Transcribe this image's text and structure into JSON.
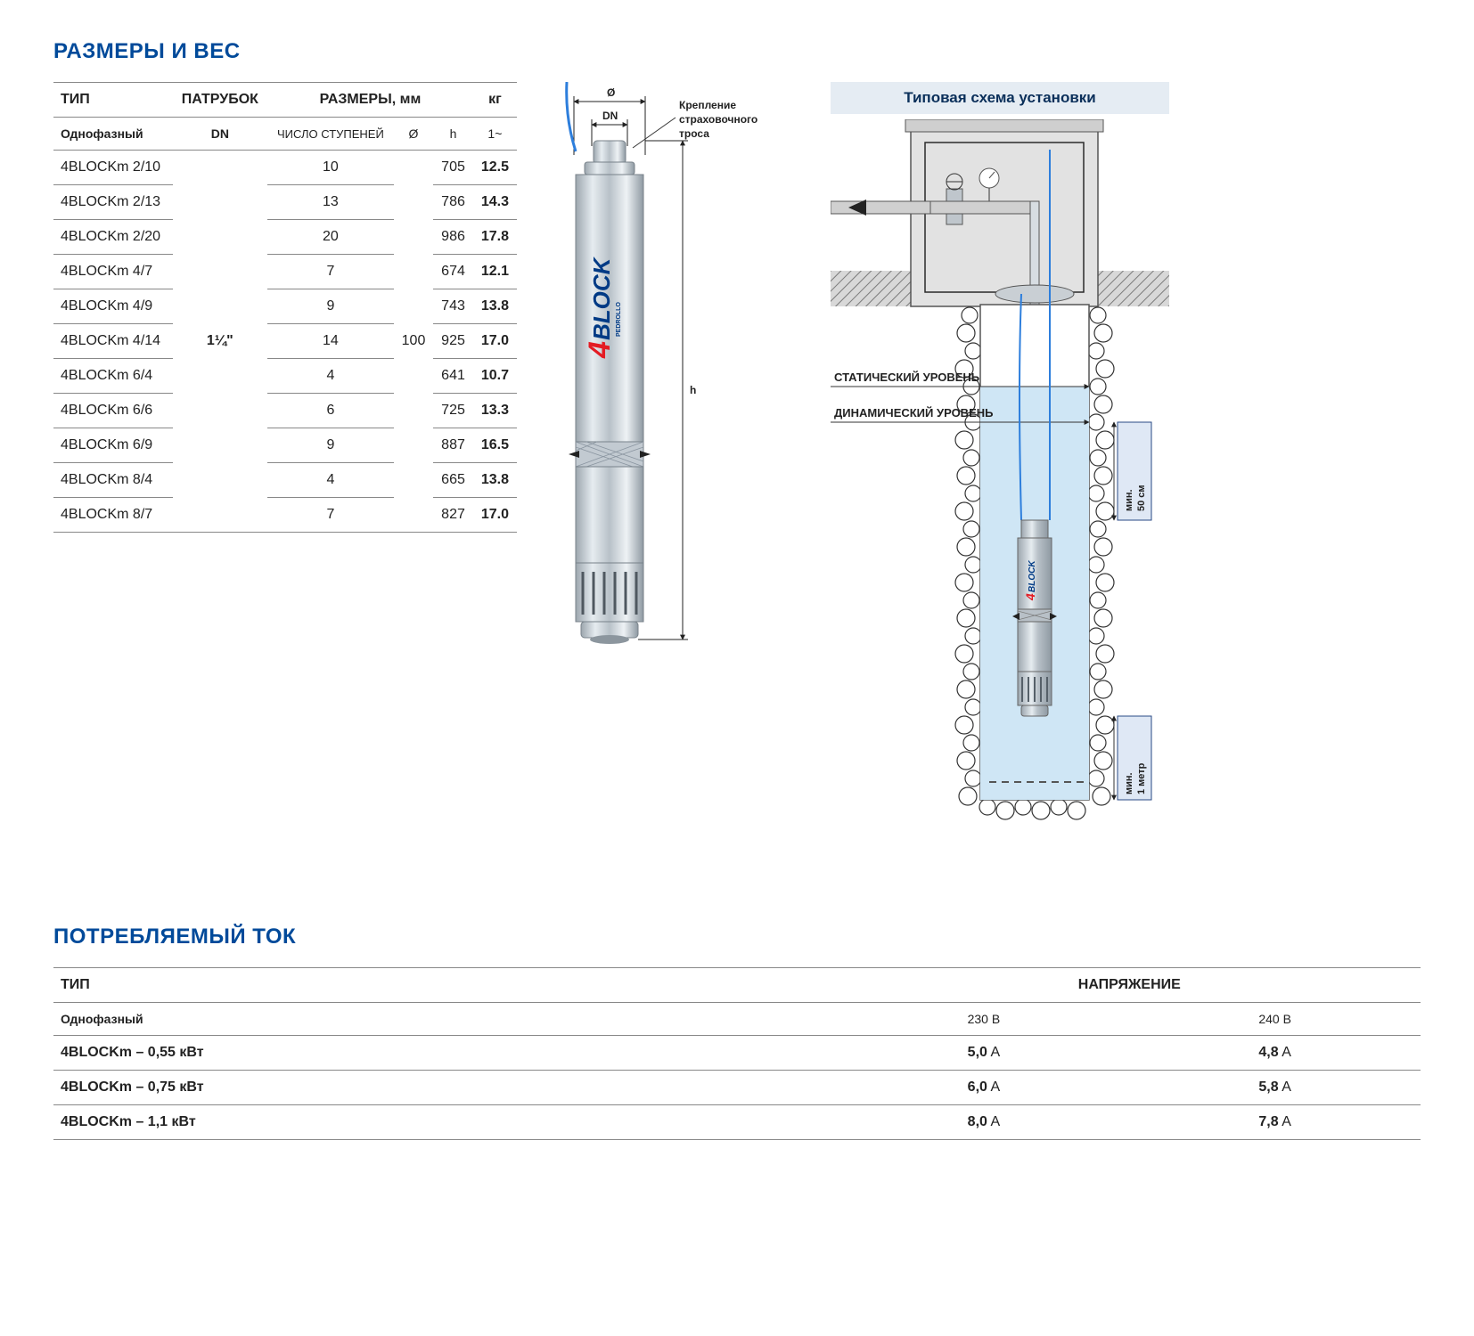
{
  "titles": {
    "dimensions": "РАЗМЕРЫ И ВЕС",
    "current": "ПОТРЕБЛЯЕМЫЙ ТОК",
    "install": "Типовая схема установки"
  },
  "table1": {
    "headers": {
      "type": "ТИП",
      "fitting": "ПАТРУБОК",
      "dims": "РАЗМЕРЫ, мм",
      "kg": "кг",
      "phase": "Однофазный",
      "dn": "DN",
      "stages": "ЧИСЛО СТУПЕНЕЙ",
      "dia": "Ø",
      "h": "h",
      "kgcol": "1~"
    },
    "fitting_value": "1¼\"",
    "dia_value": "100",
    "rows": [
      {
        "type": "4BLOCKm 2/10",
        "stages": "10",
        "h": "705",
        "kg": "12.5"
      },
      {
        "type": "4BLOCKm 2/13",
        "stages": "13",
        "h": "786",
        "kg": "14.3"
      },
      {
        "type": "4BLOCKm 2/20",
        "stages": "20",
        "h": "986",
        "kg": "17.8"
      },
      {
        "type": "4BLOCKm 4/7",
        "stages": "7",
        "h": "674",
        "kg": "12.1"
      },
      {
        "type": "4BLOCKm 4/9",
        "stages": "9",
        "h": "743",
        "kg": "13.8"
      },
      {
        "type": "4BLOCKm 4/14",
        "stages": "14",
        "h": "925",
        "kg": "17.0"
      },
      {
        "type": "4BLOCKm 6/4",
        "stages": "4",
        "h": "641",
        "kg": "10.7"
      },
      {
        "type": "4BLOCKm 6/6",
        "stages": "6",
        "h": "725",
        "kg": "13.3"
      },
      {
        "type": "4BLOCKm 6/9",
        "stages": "9",
        "h": "887",
        "kg": "16.5"
      },
      {
        "type": "4BLOCKm 8/4",
        "stages": "4",
        "h": "665",
        "kg": "13.8"
      },
      {
        "type": "4BLOCKm 8/7",
        "stages": "7",
        "h": "827",
        "kg": "17.0"
      }
    ]
  },
  "table2": {
    "headers": {
      "type": "ТИП",
      "voltage": "НАПРЯЖЕНИЕ",
      "phase": "Однофазный",
      "v230": "230 В",
      "v240": "240 В"
    },
    "rows": [
      {
        "type": "4BLOCKm – 0,55 кВт",
        "a230b": "5,0",
        "a230u": " A",
        "a240b": "4,8",
        "a240u": " A"
      },
      {
        "type": "4BLOCKm – 0,75 кВт",
        "a230b": "6,0",
        "a230u": " A",
        "a240b": "5,8",
        "a240u": " A"
      },
      {
        "type": "4BLOCKm – 1,1 кВт",
        "a230b": "8,0",
        "a230u": " A",
        "a240b": "7,8",
        "a240u": " A"
      }
    ]
  },
  "pump_labels": {
    "dia": "Ø",
    "dn": "DN",
    "h": "h",
    "cable1": "Крепление",
    "cable2": "страховочного",
    "cable3": "троса",
    "logo4": "4",
    "logoBlock": "BLOCK",
    "logoSub": "PEDROLLO"
  },
  "install_labels": {
    "static": "СТАТИЧЕСКИЙ УРОВЕНЬ",
    "dynamic": "ДИНАМИЧЕСКИЙ УРОВЕНЬ",
    "min50a": "мин.",
    "min50b": "50 см",
    "min1a": "мин.",
    "min1b": "1 метр"
  },
  "colors": {
    "title": "#004a9a",
    "border": "#888888",
    "red": "#e41b23",
    "blue": "#003a85",
    "cable": "#2d7edc",
    "water": "#cfe6f5",
    "install_title_bg": "#e5ecf3",
    "box": "#dfe8f5"
  }
}
